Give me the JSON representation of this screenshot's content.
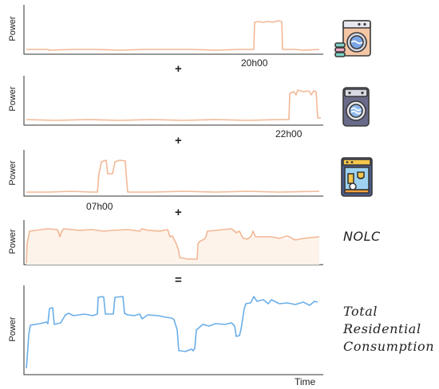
{
  "panels": [
    {
      "name": "washing-machine-load",
      "ylabel": "Power",
      "time_label": "20h00",
      "icon": "washing-machine-icon"
    },
    {
      "name": "dryer-load",
      "ylabel": "Power",
      "time_label": "22h00",
      "icon": "dryer-icon"
    },
    {
      "name": "dishwasher-load",
      "ylabel": "Power",
      "time_label": "07h00",
      "icon": "dishwasher-icon"
    },
    {
      "name": "nolc-load",
      "ylabel": "Power",
      "label": "NOLC"
    },
    {
      "name": "total-load",
      "ylabel": "Power",
      "label_lines": [
        "Total",
        "Residential",
        "Consumption"
      ],
      "xlabel": "Time"
    }
  ],
  "operators": [
    "+",
    "+",
    "+",
    "="
  ],
  "colors": {
    "appliance_line": "#f2b896",
    "total_line": "#6aaee8",
    "axis": "#333333"
  }
}
